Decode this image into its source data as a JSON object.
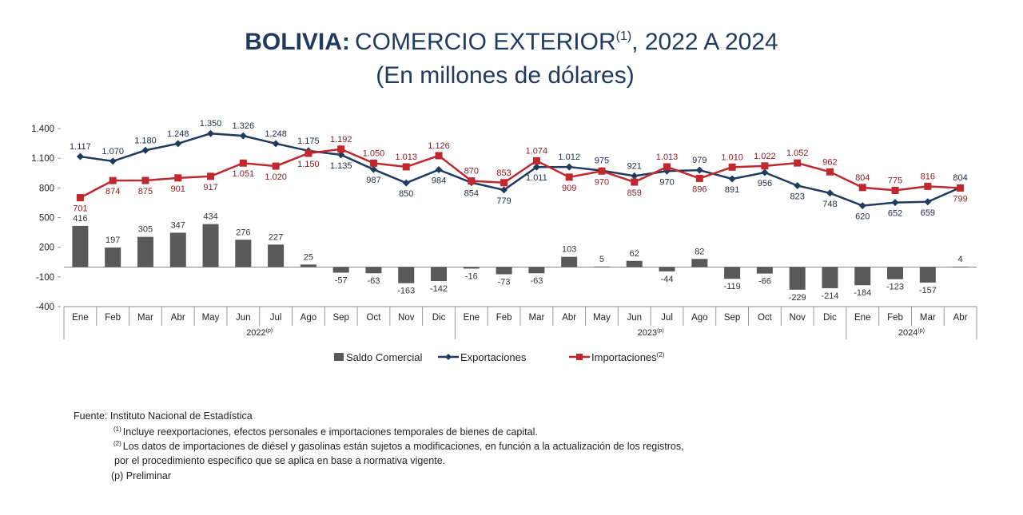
{
  "chart_data": {
    "type": "combo",
    "title_bold": "BOLIVIA:",
    "title": "COMERCIO EXTERIOR",
    "title_note": "(1)",
    "title_end": ", 2022 A 2024",
    "subtitle": "(En millones de dólares)",
    "categories": [
      "Ene",
      "Feb",
      "Mar",
      "Abr",
      "May",
      "Jun",
      "Jul",
      "Ago",
      "Sep",
      "Oct",
      "Nov",
      "Dic",
      "Ene",
      "Feb",
      "Mar",
      "Abr",
      "May",
      "Jun",
      "Jul",
      "Ago",
      "Sep",
      "Oct",
      "Nov",
      "Dic",
      "Ene",
      "Feb",
      "Mar",
      "Abr"
    ],
    "groups": [
      {
        "name": "2022",
        "note": "(p)"
      },
      {
        "name": "2023",
        "note": "(p)"
      },
      {
        "name": "2024",
        "note": "(p)"
      }
    ],
    "ylim": [
      -400,
      1400
    ],
    "yticks": [
      {
        "value": 1400,
        "label": "1.400"
      },
      {
        "value": 1100,
        "label": "1.100"
      },
      800,
      500,
      200,
      -100,
      -400
    ],
    "series": [
      {
        "name": "Saldo Comercial",
        "type": "bar",
        "color": "#595959",
        "values": [
          416,
          197,
          305,
          347,
          434,
          276,
          227,
          25,
          -57,
          -63,
          -163,
          -142,
          -16,
          -73,
          -63,
          103,
          5,
          62,
          -44,
          82,
          -119,
          -66,
          -229,
          -214,
          -184,
          -123,
          -157,
          4
        ]
      },
      {
        "name": "Exportaciones",
        "type": "line",
        "marker": "diamond",
        "color": "#1f3a5f",
        "values": [
          1117,
          1070,
          1180,
          1248,
          1350,
          1326,
          1248,
          1175,
          1135,
          987,
          850,
          984,
          854,
          779,
          1011,
          1012,
          975,
          921,
          970,
          979,
          891,
          956,
          823,
          748,
          620,
          652,
          659,
          804
        ],
        "value_labels": [
          "1.117",
          "1.070",
          "1.180",
          "1.248",
          "1.350",
          "1.326",
          "1.248",
          "1.175",
          "1.135",
          "987",
          "850",
          "984",
          "854",
          "779",
          "1.011",
          "1.012",
          "975",
          "921",
          "970",
          "979",
          "891",
          "956",
          "823",
          "748",
          "620",
          "652",
          "659",
          "804"
        ]
      },
      {
        "name": "Importaciones",
        "name_note": "(2)",
        "type": "line",
        "marker": "square",
        "color": "#c0282e",
        "values": [
          701,
          874,
          875,
          901,
          917,
          1051,
          1020,
          1150,
          1192,
          1050,
          1013,
          1126,
          870,
          853,
          1074,
          909,
          970,
          859,
          1013,
          896,
          1010,
          1022,
          1052,
          962,
          804,
          775,
          816,
          799
        ],
        "value_labels": [
          "701",
          "874",
          "875",
          "901",
          "917",
          "1.051",
          "1.020",
          "1.150",
          "1.192",
          "1.050",
          "1.013",
          "1.126",
          "870",
          "853",
          "1.074",
          "909",
          "970",
          "859",
          "1.013",
          "896",
          "1.010",
          "1.022",
          "1.052",
          "962",
          "804",
          "775",
          "816",
          "799"
        ]
      }
    ]
  },
  "footnotes": {
    "source": "Fuente: Instituto Nacional de Estadística",
    "notes": [
      {
        "mark": "(1)",
        "text": "Incluye reexportaciones, efectos personales e importaciones temporales de bienes de capital."
      },
      {
        "mark": "(2)",
        "text": "Los datos de importaciones de diésel y gasolinas están sujetos a modificaciones, en función a la actualización de los registros,"
      }
    ],
    "continuation": "por el procedimiento específico que se aplica en base a normativa vigente.",
    "preliminary": "(p) Preliminar"
  }
}
